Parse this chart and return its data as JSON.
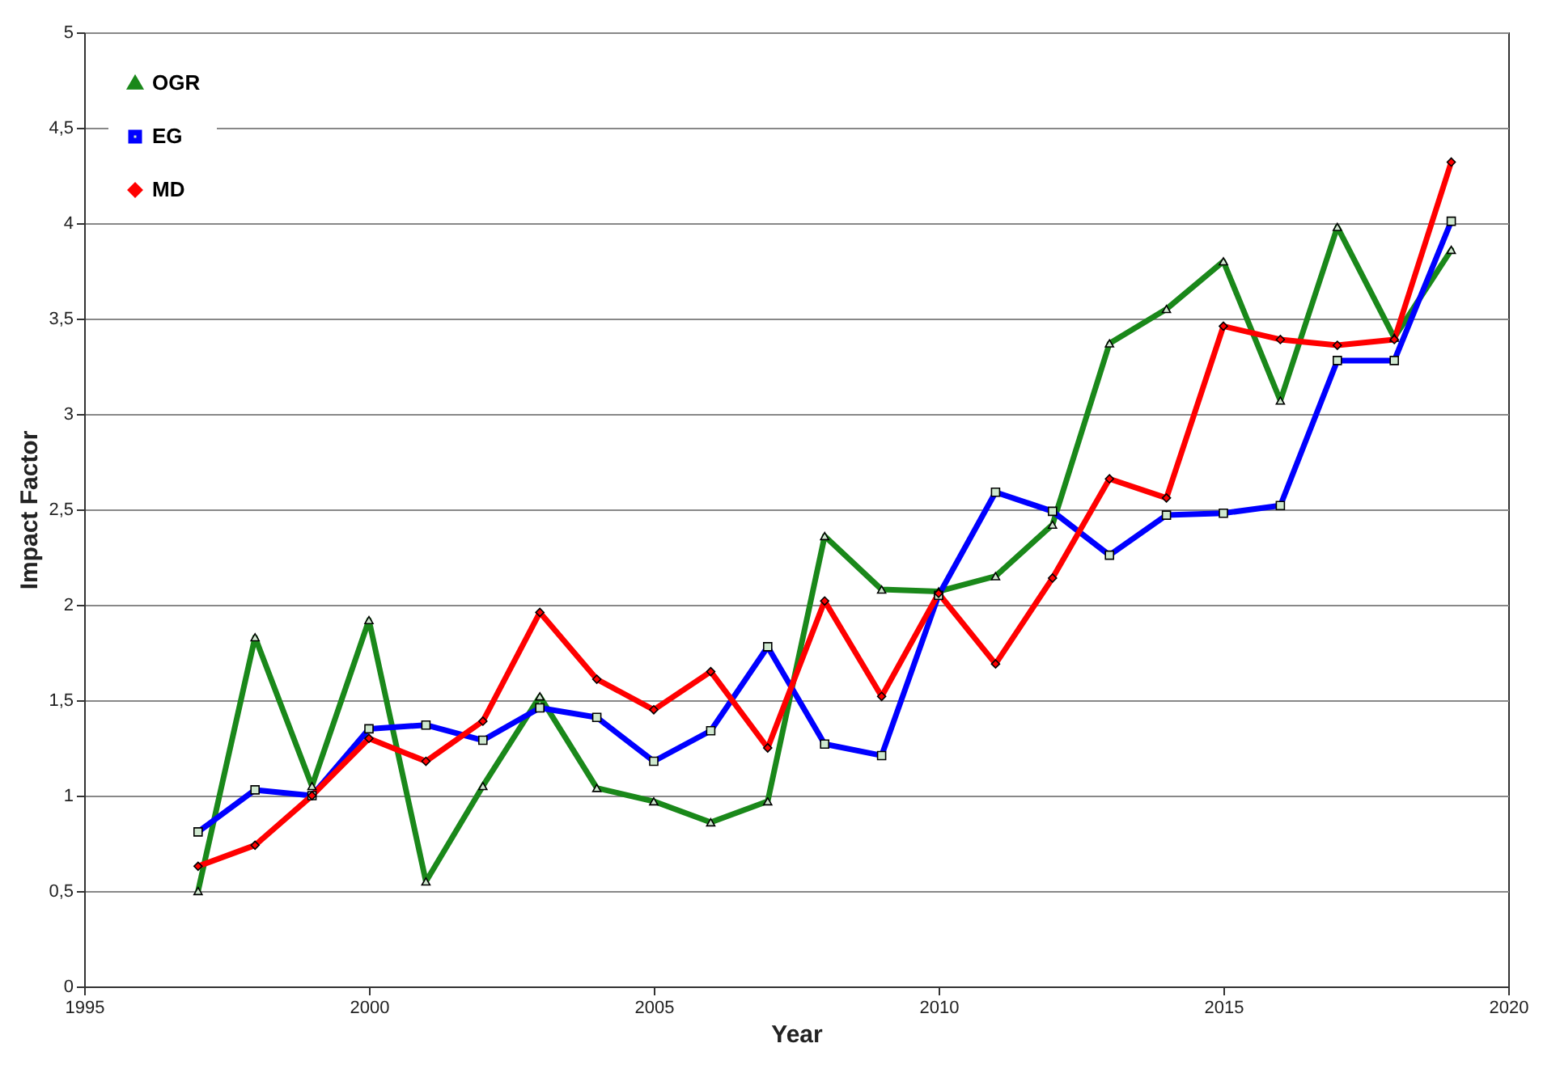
{
  "chart_data": {
    "type": "line",
    "xlabel": "Year",
    "ylabel": "Impact Factor",
    "x": [
      1997,
      1998,
      1999,
      2000,
      2001,
      2002,
      2003,
      2004,
      2005,
      2006,
      2007,
      2008,
      2009,
      2010,
      2011,
      2012,
      2013,
      2014,
      2015,
      2016,
      2017,
      2018,
      2019
    ],
    "series": [
      {
        "name": "OGR",
        "color": "#1a881a",
        "marker": "triangle",
        "values": [
          0.5,
          1.83,
          1.05,
          1.92,
          0.55,
          1.05,
          1.52,
          1.04,
          0.97,
          0.86,
          0.97,
          2.36,
          2.08,
          2.07,
          2.15,
          2.42,
          3.37,
          3.55,
          3.8,
          3.07,
          3.98,
          3.4,
          3.86
        ]
      },
      {
        "name": "EG",
        "color": "#0000ff",
        "marker": "square",
        "values": [
          0.81,
          1.03,
          1.0,
          1.35,
          1.37,
          1.29,
          1.46,
          1.41,
          1.18,
          1.34,
          1.78,
          1.27,
          1.21,
          2.05,
          2.59,
          2.49,
          2.26,
          2.47,
          2.48,
          2.52,
          3.28,
          3.28,
          4.01
        ]
      },
      {
        "name": "MD",
        "color": "#ff0000",
        "marker": "diamond",
        "values": [
          0.63,
          0.74,
          1.0,
          1.3,
          1.18,
          1.39,
          1.96,
          1.61,
          1.45,
          1.65,
          1.25,
          2.02,
          1.52,
          2.06,
          1.69,
          2.14,
          2.66,
          2.56,
          3.46,
          3.39,
          3.36,
          3.39,
          4.32
        ]
      }
    ],
    "xlim": [
      1995,
      2020
    ],
    "xticks": [
      1995,
      2000,
      2005,
      2010,
      2015,
      2020
    ],
    "ylim": [
      0,
      5
    ],
    "yticks": [
      0,
      {
        "value": 0.5,
        "label": "0,5"
      },
      1,
      {
        "value": 1.5,
        "label": "1,5"
      },
      2,
      {
        "value": 2.5,
        "label": "2,5"
      },
      3,
      {
        "value": 3.5,
        "label": "3,5"
      },
      4,
      {
        "value": 4.5,
        "label": "4,5"
      },
      5
    ],
    "grid": "y",
    "legend": "top left",
    "line_style": "solid"
  }
}
